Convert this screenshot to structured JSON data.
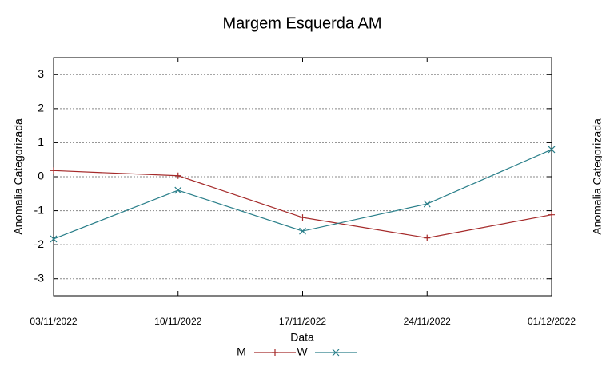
{
  "chart_data": {
    "type": "line",
    "title": "Margem Esquerda AM",
    "xlabel": "Data",
    "ylabel": "Anomalia Categorizada",
    "y2label": "Anomalia Categorizada",
    "categories": [
      "03/11/2022",
      "10/11/2022",
      "17/11/2022",
      "24/11/2022",
      "01/12/2022"
    ],
    "series": [
      {
        "name": "M",
        "color": "#a52a2a",
        "marker": "+",
        "values": [
          0.18,
          0.03,
          -1.2,
          -1.8,
          -1.12
        ]
      },
      {
        "name": "W",
        "color": "#2a7f8a",
        "marker": "x",
        "values": [
          -1.83,
          -0.4,
          -1.6,
          -0.8,
          0.8
        ]
      }
    ],
    "ylim": [
      -3.5,
      3.5
    ],
    "yticks": [
      -3,
      -2,
      -1,
      0,
      1,
      2,
      3
    ],
    "grid": true,
    "legend": "bottom"
  }
}
